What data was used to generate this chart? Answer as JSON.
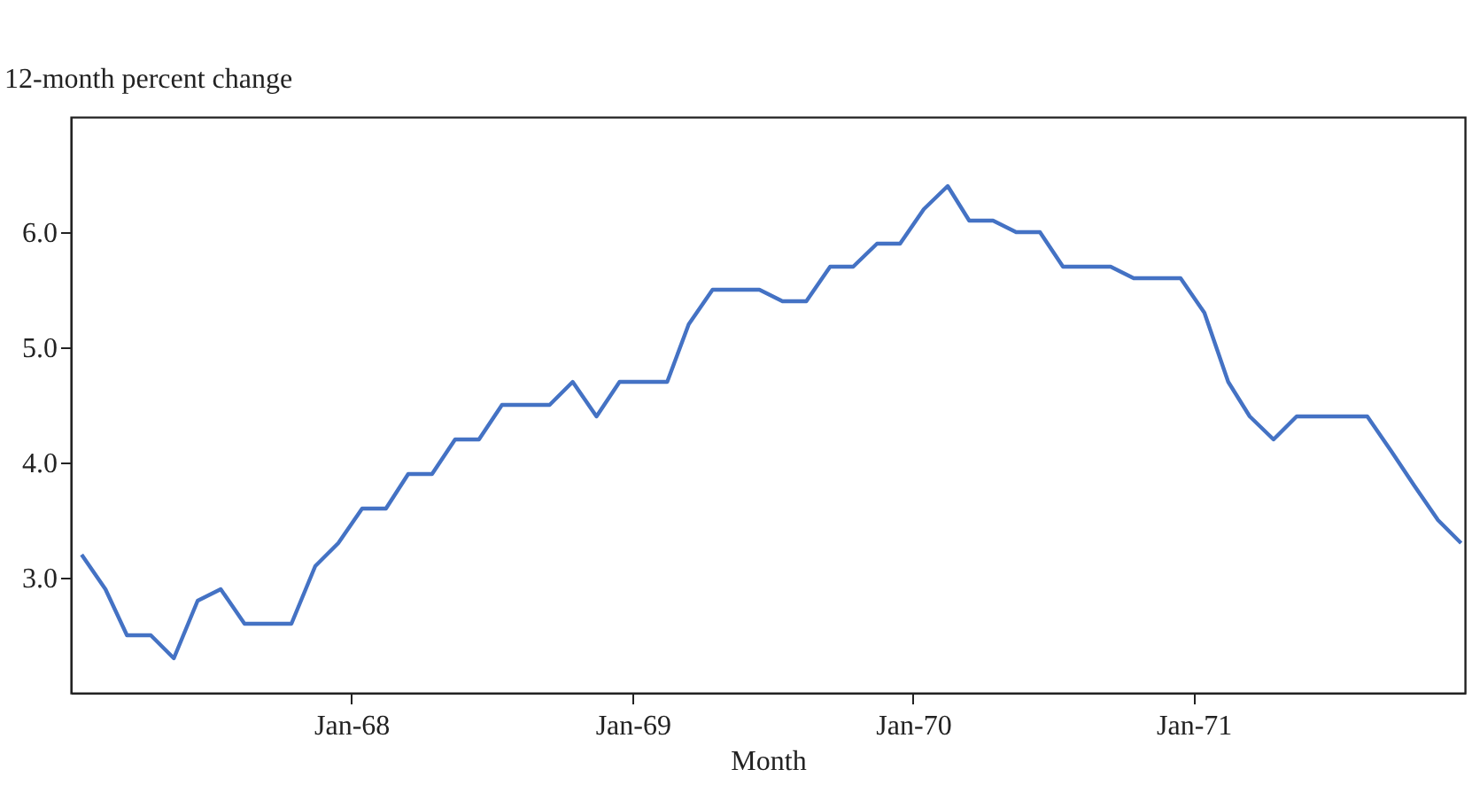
{
  "chart_data": {
    "type": "line",
    "ylabel": "12-month percent change",
    "xlabel": "Month",
    "x": [
      "1967-01-15",
      "1967-02-15",
      "1967-03-15",
      "1967-04-15",
      "1967-05-15",
      "1967-06-15",
      "1967-07-15",
      "1967-08-15",
      "1967-09-15",
      "1967-10-15",
      "1967-11-15",
      "1967-12-15",
      "1968-01-15",
      "1968-02-15",
      "1968-03-15",
      "1968-04-15",
      "1968-05-15",
      "1968-06-15",
      "1968-07-15",
      "1968-08-15",
      "1968-09-15",
      "1968-10-15",
      "1968-11-15",
      "1968-12-15",
      "1969-01-15",
      "1969-02-15",
      "1969-03-15",
      "1969-04-15",
      "1969-05-15",
      "1969-06-15",
      "1969-07-15",
      "1969-08-15",
      "1969-09-15",
      "1969-10-15",
      "1969-11-15",
      "1969-12-15",
      "1970-01-15",
      "1970-02-15",
      "1970-03-15",
      "1970-04-15",
      "1970-05-15",
      "1970-06-15",
      "1970-07-15",
      "1970-08-15",
      "1970-09-15",
      "1970-10-15",
      "1970-11-15",
      "1970-12-15",
      "1971-01-15",
      "1971-02-15",
      "1971-03-15",
      "1971-04-15",
      "1971-05-15",
      "1971-06-15",
      "1971-07-15",
      "1971-08-15",
      "1971-09-15",
      "1971-10-15",
      "1971-11-15",
      "1971-12-15"
    ],
    "series": [
      {
        "color": "#4472c4",
        "values": [
          3.2,
          2.9,
          2.5,
          2.5,
          2.3,
          2.8,
          2.9,
          2.6,
          2.6,
          2.6,
          3.1,
          3.3,
          3.6,
          3.6,
          3.9,
          3.9,
          4.2,
          4.2,
          4.5,
          4.5,
          4.5,
          4.7,
          4.4,
          4.7,
          4.7,
          4.7,
          5.2,
          5.5,
          5.5,
          5.5,
          5.4,
          5.4,
          5.7,
          5.7,
          5.9,
          5.9,
          6.2,
          6.4,
          6.1,
          6.1,
          6.0,
          6.0,
          5.7,
          5.7,
          5.7,
          5.6,
          5.6,
          5.6,
          5.3,
          4.7,
          4.4,
          4.2,
          4.4,
          4.4,
          4.4,
          4.4,
          4.1,
          3.8,
          3.5,
          3.3
        ]
      }
    ],
    "xlim": [
      "1967-01-01",
      "1971-12-20"
    ],
    "xticks": [
      {
        "value": "1968-01-01",
        "label": "Jan-68"
      },
      {
        "value": "1969-01-01",
        "label": "Jan-69"
      },
      {
        "value": "1970-01-01",
        "label": "Jan-70"
      },
      {
        "value": "1971-01-01",
        "label": "Jan-71"
      }
    ],
    "ylim": [
      2.0,
      7.0
    ],
    "yticks": [
      {
        "value": 3,
        "label": "3.0"
      },
      {
        "value": 4,
        "label": "4.0"
      },
      {
        "value": 5,
        "label": "5.0"
      },
      {
        "value": 6,
        "label": "6.0"
      }
    ],
    "grid": false,
    "legend": false,
    "marker": "none",
    "line_style": "solid"
  }
}
